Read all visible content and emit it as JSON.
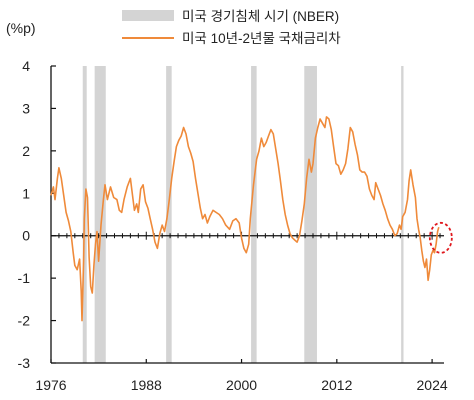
{
  "chart_data": {
    "type": "line",
    "unit": "(%p)",
    "xlim": [
      1976,
      2025.5
    ],
    "ylim": [
      -3,
      4
    ],
    "yticks": [
      -3,
      -2,
      -1,
      0,
      1,
      2,
      3,
      4
    ],
    "xticks": [
      1976,
      1988,
      2000,
      2012,
      2024
    ],
    "legend": [
      {
        "label": "미국 경기침체 시기 (NBER)",
        "kind": "band",
        "color": "#d4d4d4"
      },
      {
        "label": "미국 10년-2년물 국채금리차",
        "kind": "line",
        "color": "#ef8a3a"
      }
    ],
    "recessions": [
      {
        "start": 1980.0,
        "end": 1980.5
      },
      {
        "start": 1981.5,
        "end": 1982.9
      },
      {
        "start": 1990.5,
        "end": 1991.2
      },
      {
        "start": 2001.2,
        "end": 2001.9
      },
      {
        "start": 2007.9,
        "end": 2009.5
      },
      {
        "start": 2020.1,
        "end": 2020.4
      }
    ],
    "series": [
      {
        "color": "#ef8a3a",
        "points": [
          [
            1976.0,
            0.95
          ],
          [
            1976.3,
            1.15
          ],
          [
            1976.5,
            0.85
          ],
          [
            1976.8,
            1.35
          ],
          [
            1977.0,
            1.6
          ],
          [
            1977.3,
            1.35
          ],
          [
            1977.6,
            0.95
          ],
          [
            1977.9,
            0.55
          ],
          [
            1978.2,
            0.35
          ],
          [
            1978.5,
            0.1
          ],
          [
            1978.8,
            -0.4
          ],
          [
            1979.0,
            -0.7
          ],
          [
            1979.3,
            -0.8
          ],
          [
            1979.6,
            -0.55
          ],
          [
            1979.8,
            -1.3
          ],
          [
            1979.9,
            -2.0
          ],
          [
            1980.0,
            -1.3
          ],
          [
            1980.1,
            -0.6
          ],
          [
            1980.2,
            0.4
          ],
          [
            1980.4,
            1.1
          ],
          [
            1980.6,
            0.9
          ],
          [
            1980.8,
            -0.5
          ],
          [
            1981.0,
            -1.2
          ],
          [
            1981.2,
            -1.35
          ],
          [
            1981.4,
            -0.7
          ],
          [
            1981.6,
            -0.2
          ],
          [
            1981.8,
            0.1
          ],
          [
            1982.0,
            -0.6
          ],
          [
            1982.3,
            0.25
          ],
          [
            1982.6,
            0.85
          ],
          [
            1982.8,
            1.2
          ],
          [
            1983.1,
            0.85
          ],
          [
            1983.5,
            1.15
          ],
          [
            1983.9,
            0.9
          ],
          [
            1984.3,
            0.85
          ],
          [
            1984.6,
            0.6
          ],
          [
            1984.9,
            0.55
          ],
          [
            1985.2,
            0.85
          ],
          [
            1985.6,
            1.15
          ],
          [
            1986.0,
            1.35
          ],
          [
            1986.2,
            1.05
          ],
          [
            1986.5,
            0.6
          ],
          [
            1986.8,
            0.75
          ],
          [
            1987.0,
            0.55
          ],
          [
            1987.3,
            1.1
          ],
          [
            1987.6,
            1.2
          ],
          [
            1987.9,
            0.8
          ],
          [
            1988.2,
            0.65
          ],
          [
            1988.5,
            0.4
          ],
          [
            1988.8,
            0.15
          ],
          [
            1989.1,
            -0.15
          ],
          [
            1989.4,
            -0.3
          ],
          [
            1989.7,
            0.05
          ],
          [
            1990.0,
            0.25
          ],
          [
            1990.3,
            0.1
          ],
          [
            1990.6,
            0.4
          ],
          [
            1990.9,
            0.85
          ],
          [
            1991.2,
            1.35
          ],
          [
            1991.5,
            1.75
          ],
          [
            1991.8,
            2.1
          ],
          [
            1992.1,
            2.25
          ],
          [
            1992.4,
            2.35
          ],
          [
            1992.7,
            2.55
          ],
          [
            1993.0,
            2.4
          ],
          [
            1993.3,
            2.1
          ],
          [
            1993.6,
            1.95
          ],
          [
            1993.9,
            1.75
          ],
          [
            1994.2,
            1.35
          ],
          [
            1994.5,
            1.0
          ],
          [
            1994.8,
            0.65
          ],
          [
            1995.1,
            0.4
          ],
          [
            1995.4,
            0.5
          ],
          [
            1995.7,
            0.3
          ],
          [
            1996.0,
            0.45
          ],
          [
            1996.4,
            0.6
          ],
          [
            1996.8,
            0.55
          ],
          [
            1997.2,
            0.5
          ],
          [
            1997.6,
            0.4
          ],
          [
            1998.0,
            0.25
          ],
          [
            1998.5,
            0.15
          ],
          [
            1998.9,
            0.35
          ],
          [
            1999.3,
            0.4
          ],
          [
            1999.7,
            0.3
          ],
          [
            2000.0,
            -0.05
          ],
          [
            2000.3,
            -0.3
          ],
          [
            2000.6,
            -0.4
          ],
          [
            2000.9,
            -0.2
          ],
          [
            2001.1,
            0.4
          ],
          [
            2001.5,
            1.2
          ],
          [
            2001.9,
            1.8
          ],
          [
            2002.2,
            2.0
          ],
          [
            2002.5,
            2.3
          ],
          [
            2002.8,
            2.1
          ],
          [
            2003.1,
            2.2
          ],
          [
            2003.4,
            2.35
          ],
          [
            2003.7,
            2.5
          ],
          [
            2004.0,
            2.4
          ],
          [
            2004.3,
            2.05
          ],
          [
            2004.6,
            1.7
          ],
          [
            2004.9,
            1.3
          ],
          [
            2005.2,
            0.85
          ],
          [
            2005.5,
            0.5
          ],
          [
            2005.8,
            0.25
          ],
          [
            2006.1,
            0.05
          ],
          [
            2006.4,
            -0.05
          ],
          [
            2006.7,
            -0.1
          ],
          [
            2007.0,
            -0.15
          ],
          [
            2007.3,
            0.0
          ],
          [
            2007.6,
            0.35
          ],
          [
            2007.9,
            0.75
          ],
          [
            2008.2,
            1.35
          ],
          [
            2008.5,
            1.8
          ],
          [
            2008.8,
            1.5
          ],
          [
            2009.0,
            1.7
          ],
          [
            2009.3,
            2.3
          ],
          [
            2009.6,
            2.55
          ],
          [
            2009.9,
            2.75
          ],
          [
            2010.2,
            2.65
          ],
          [
            2010.5,
            2.55
          ],
          [
            2010.7,
            2.8
          ],
          [
            2011.0,
            2.75
          ],
          [
            2011.3,
            2.5
          ],
          [
            2011.6,
            2.1
          ],
          [
            2011.9,
            1.7
          ],
          [
            2012.2,
            1.65
          ],
          [
            2012.5,
            1.45
          ],
          [
            2012.8,
            1.55
          ],
          [
            2013.1,
            1.7
          ],
          [
            2013.4,
            2.05
          ],
          [
            2013.7,
            2.55
          ],
          [
            2014.0,
            2.45
          ],
          [
            2014.3,
            2.15
          ],
          [
            2014.6,
            1.9
          ],
          [
            2014.9,
            1.55
          ],
          [
            2015.2,
            1.5
          ],
          [
            2015.5,
            1.5
          ],
          [
            2015.8,
            1.4
          ],
          [
            2016.1,
            1.1
          ],
          [
            2016.4,
            0.95
          ],
          [
            2016.7,
            0.85
          ],
          [
            2016.9,
            1.25
          ],
          [
            2017.2,
            1.1
          ],
          [
            2017.5,
            0.95
          ],
          [
            2017.8,
            0.75
          ],
          [
            2018.1,
            0.6
          ],
          [
            2018.4,
            0.4
          ],
          [
            2018.7,
            0.25
          ],
          [
            2019.0,
            0.15
          ],
          [
            2019.3,
            0.0
          ],
          [
            2019.6,
            0.05
          ],
          [
            2019.9,
            0.25
          ],
          [
            2020.1,
            0.15
          ],
          [
            2020.3,
            0.45
          ],
          [
            2020.6,
            0.55
          ],
          [
            2020.9,
            0.85
          ],
          [
            2021.1,
            1.3
          ],
          [
            2021.3,
            1.55
          ],
          [
            2021.6,
            1.2
          ],
          [
            2021.9,
            0.9
          ],
          [
            2022.1,
            0.4
          ],
          [
            2022.3,
            0.15
          ],
          [
            2022.5,
            -0.05
          ],
          [
            2022.7,
            -0.35
          ],
          [
            2022.9,
            -0.6
          ],
          [
            2023.1,
            -0.75
          ],
          [
            2023.3,
            -0.55
          ],
          [
            2023.5,
            -1.05
          ],
          [
            2023.7,
            -0.8
          ],
          [
            2023.9,
            -0.45
          ],
          [
            2024.1,
            -0.35
          ],
          [
            2024.3,
            -0.4
          ],
          [
            2024.5,
            -0.2
          ],
          [
            2024.7,
            0.1
          ],
          [
            2024.85,
            0.2
          ]
        ]
      }
    ],
    "highlight": {
      "x": 2025.1,
      "y": -0.05,
      "style": "dashed-circle",
      "color": "#e0191e"
    },
    "grid": false,
    "legend_position": "top-right"
  }
}
